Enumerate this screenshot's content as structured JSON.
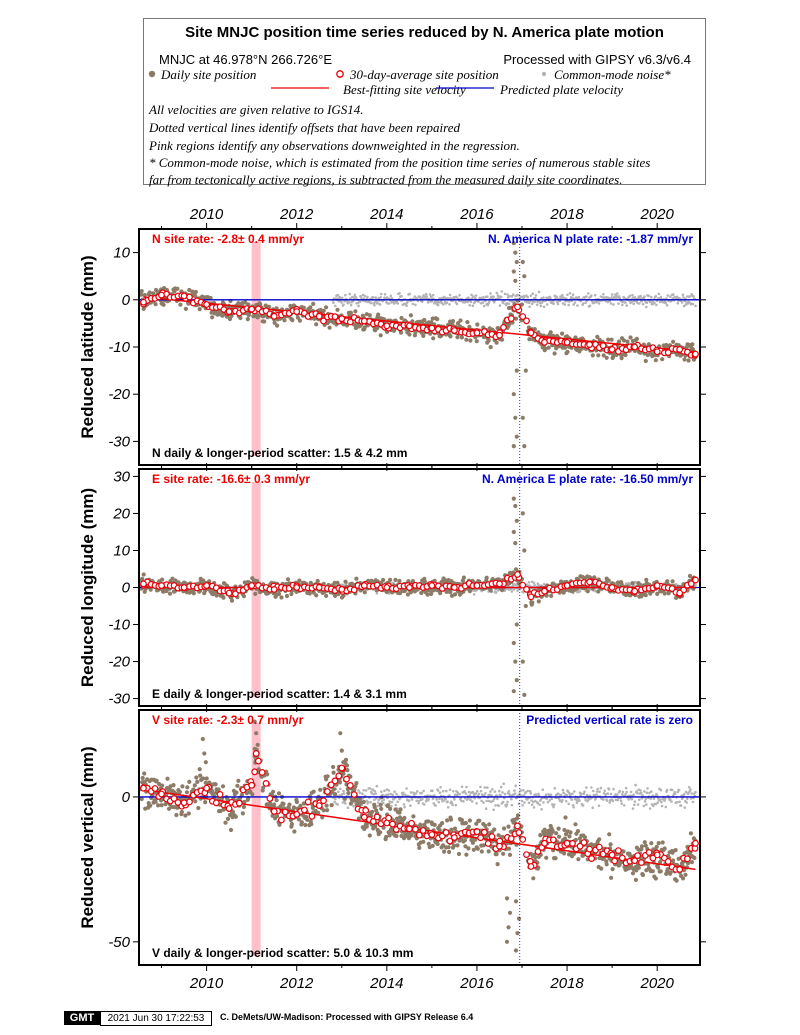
{
  "legend": {
    "title": "Site MNJC position time series reduced by N. America plate motion",
    "site_coords": "MNJC at 46.978°N 266.726°E",
    "processing": "Processed with GIPSY v6.3/v6.4",
    "daily_label": "Daily site position",
    "avg_label": "30-day-average site position",
    "cm_label": "Common-mode noise*",
    "best_fit_label": "Best-fitting site velocity",
    "predicted_label": "Predicted plate velocity",
    "notes": [
      "All velocities are given relative to IGS14.",
      "Dotted vertical lines identify offsets that have been repaired",
      "Pink regions identify any observations downweighted in the regression.",
      "* Common-mode noise, which is estimated from the position time series of numerous stable sites",
      "far from tectonically active regions, is subtracted from the measured daily site coordinates."
    ]
  },
  "footer": {
    "logo": "GMT",
    "date": "2021 Jun 30 17:22:53",
    "credit": "C. DeMets/UW-Madison: Processed with GIPSY Release 6.4"
  },
  "colors": {
    "daily": "#8c7b66",
    "common_mode": "#b4b4b4",
    "average": "#e8000b",
    "best_fit": "#ee0000",
    "predicted": "#0000cc",
    "site_rate_text": "#ee0000",
    "plate_rate_text": "#0000cc",
    "downweighted": "#ffc0cb"
  },
  "chart_data": [
    {
      "type": "scatter",
      "component": "north",
      "ylabel": "Reduced latitude (mm)",
      "xlim": [
        2008.5,
        2020.95
      ],
      "ylim": [
        -35,
        15
      ],
      "x_ticks": [
        2010,
        2012,
        2014,
        2016,
        2018,
        2020
      ],
      "y_ticks": [
        10,
        0,
        -10,
        -20,
        -30
      ],
      "site_rate": "N site rate:  -2.8± 0.4 mm/yr",
      "plate_rate": "N. America N plate rate: -1.87 mm/yr",
      "scatter": "N daily & longer-period scatter:   1.5 &   4.2 mm",
      "downweighted_span": [
        2011.0,
        2011.2
      ],
      "offset_epoch": 2016.95,
      "best_fit": {
        "x": [
          2008.6,
          2020.85
        ],
        "y": [
          0.6,
          -11.0
        ]
      },
      "predicted": {
        "x": [
          2008.5,
          2020.95
        ],
        "y": [
          0,
          0
        ]
      },
      "avg_series": {
        "x": [
          2008.6,
          2009.0,
          2009.5,
          2010.0,
          2010.5,
          2011.0,
          2011.5,
          2012.0,
          2012.5,
          2013.0,
          2013.5,
          2014.0,
          2014.5,
          2015.0,
          2015.5,
          2016.0,
          2016.5,
          2016.9,
          2017.2,
          2017.5,
          2018.0,
          2018.5,
          2019.0,
          2019.5,
          2020.0,
          2020.5,
          2020.85
        ],
        "y": [
          -0.5,
          1.0,
          0.8,
          -1.0,
          -2.5,
          -2.0,
          -3.5,
          -2.5,
          -3.5,
          -4.0,
          -4.5,
          -5.5,
          -5.5,
          -6.0,
          -6.5,
          -7.0,
          -7.5,
          -1.5,
          -7.0,
          -9.0,
          -9.0,
          -9.5,
          -10.5,
          -10.0,
          -11.0,
          -10.5,
          -11.5
        ]
      },
      "spikes": [
        {
          "x": 2016.85,
          "y": [
            12,
            10,
            8,
            6,
            4,
            -15,
            -20,
            -25,
            -29,
            -31
          ]
        },
        {
          "x": 2017.05,
          "y": [
            8,
            5,
            -15,
            -25,
            -31
          ]
        }
      ]
    },
    {
      "type": "scatter",
      "component": "east",
      "ylabel": "Reduced longitude (mm)",
      "xlim": [
        2008.5,
        2020.95
      ],
      "ylim": [
        -32,
        32
      ],
      "x_ticks": [
        2010,
        2012,
        2014,
        2016,
        2018,
        2020
      ],
      "y_ticks": [
        30,
        20,
        10,
        0,
        -10,
        -20,
        -30
      ],
      "site_rate": "E site rate: -16.6± 0.3 mm/yr",
      "plate_rate": "N. America E plate rate: -16.50 mm/yr",
      "scatter": "E daily & longer-period scatter:   1.4 &   3.1 mm",
      "downweighted_span": [
        2011.0,
        2011.2
      ],
      "offset_epoch": 2016.95,
      "best_fit": {
        "x": [
          2008.6,
          2020.85
        ],
        "y": [
          0,
          0
        ]
      },
      "predicted": {
        "x": [
          2008.5,
          2020.95
        ],
        "y": [
          0,
          0
        ]
      },
      "avg_series": {
        "x": [
          2008.6,
          2009.0,
          2009.5,
          2010.0,
          2010.5,
          2011.0,
          2011.5,
          2012.0,
          2012.5,
          2013.0,
          2013.5,
          2014.0,
          2014.5,
          2015.0,
          2015.5,
          2016.0,
          2016.5,
          2016.9,
          2017.2,
          2017.5,
          2018.0,
          2018.5,
          2019.0,
          2019.5,
          2020.0,
          2020.5,
          2020.85
        ],
        "y": [
          1.0,
          0.5,
          0.0,
          0.5,
          -1.5,
          0.5,
          -0.5,
          0.0,
          0.0,
          -0.5,
          0.5,
          0.0,
          0.0,
          0.5,
          0.0,
          0.5,
          1.0,
          3.5,
          -2.5,
          -1.0,
          0.5,
          1.5,
          0.0,
          -1.0,
          0.5,
          -1.5,
          2.0
        ]
      },
      "spikes": [
        {
          "x": 2016.85,
          "y": [
            24,
            22,
            18,
            15,
            12,
            -10,
            -15,
            -20,
            -25,
            -28
          ]
        },
        {
          "x": 2017.05,
          "y": [
            20,
            10,
            -5,
            -20,
            -29
          ]
        }
      ]
    },
    {
      "type": "scatter",
      "component": "vertical",
      "ylabel": "Reduced vertical (mm)",
      "xlim": [
        2008.5,
        2020.95
      ],
      "ylim": [
        -58,
        30
      ],
      "x_ticks": [
        2010,
        2012,
        2014,
        2016,
        2018,
        2020
      ],
      "y_ticks": [
        0,
        -50
      ],
      "site_rate": "V site rate:  -2.3± 0.7 mm/yr",
      "plate_rate": "Predicted vertical rate is zero",
      "scatter": "V daily & longer-period scatter:   5.0 &  10.3 mm",
      "downweighted_span": [
        2011.0,
        2011.2
      ],
      "offset_epoch": 2016.95,
      "best_fit": {
        "x": [
          2008.6,
          2020.85
        ],
        "y": [
          2.5,
          -25.0
        ]
      },
      "predicted": {
        "x": [
          2008.5,
          2020.95
        ],
        "y": [
          0,
          0
        ]
      },
      "avg_series": {
        "x": [
          2008.6,
          2009.0,
          2009.5,
          2010.0,
          2010.5,
          2011.0,
          2011.1,
          2011.5,
          2012.0,
          2012.5,
          2013.0,
          2013.5,
          2014.0,
          2014.5,
          2015.0,
          2015.5,
          2016.0,
          2016.5,
          2016.9,
          2017.2,
          2017.5,
          2018.0,
          2018.5,
          2019.0,
          2019.5,
          2020.0,
          2020.5,
          2020.85
        ],
        "y": [
          3.0,
          1.0,
          -2.0,
          3.0,
          -4.0,
          4.0,
          15.0,
          -5.0,
          -6.0,
          -3.0,
          10.0,
          -7.0,
          -9.0,
          -11.0,
          -13.0,
          -14.0,
          -12.0,
          -17.0,
          -10.0,
          -24.0,
          -16.0,
          -16.0,
          -18.0,
          -20.0,
          -22.0,
          -20.0,
          -25.0,
          -16.0
        ]
      },
      "spikes": [
        {
          "x": 2009.95,
          "y": [
            20,
            15,
            12
          ]
        },
        {
          "x": 2011.1,
          "y": [
            26,
            22,
            18,
            14
          ]
        },
        {
          "x": 2013.0,
          "y": [
            22,
            16,
            12
          ]
        },
        {
          "x": 2016.7,
          "y": [
            -50,
            -45,
            -40,
            -35
          ]
        },
        {
          "x": 2016.9,
          "y": [
            -53,
            -47,
            -42,
            -36
          ]
        }
      ]
    }
  ]
}
